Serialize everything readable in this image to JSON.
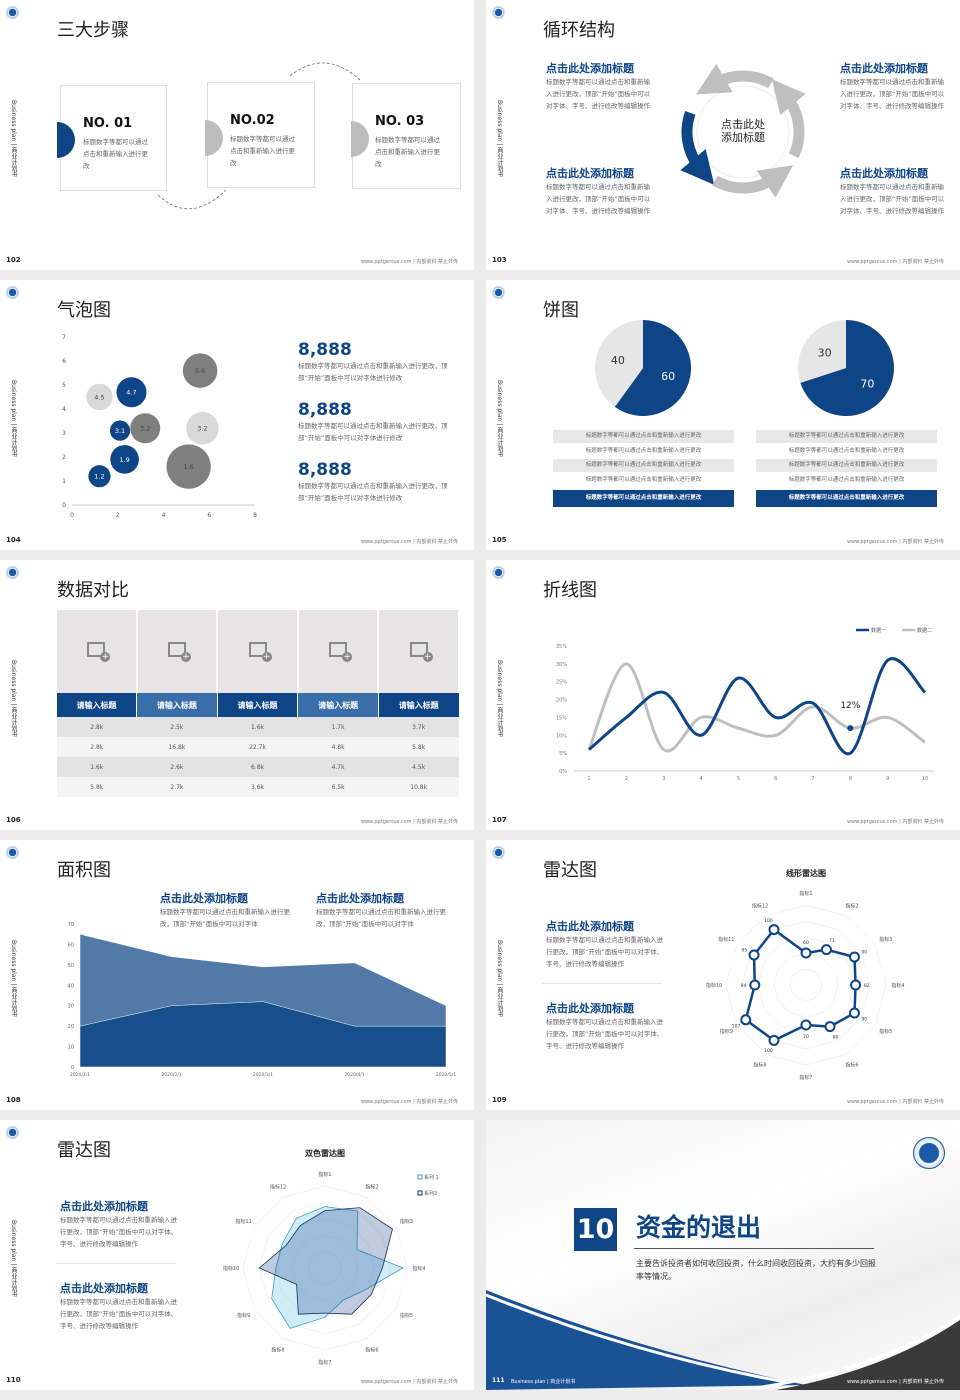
{
  "common": {
    "side_label": "Business plan | 商业计划书",
    "footer": "www.pptgenius.com | 内部资料 禁止外传"
  },
  "colors": {
    "navy": "#0e4587",
    "gray": "#bfbfbf",
    "dark_gray": "#7f7f7f",
    "light_gray": "#d9d9d9"
  },
  "s102": {
    "page": "102",
    "title": "三大步骤",
    "steps": [
      {
        "no": "NO. 01",
        "desc": "标题数字等都可以通过点击和重新输入进行更改"
      },
      {
        "no": "NO.02",
        "desc": "标题数字等都可以通过点击和重新输入进行更改"
      },
      {
        "no": "NO. 03",
        "desc": "标题数字等都可以通过点击和重新输入进行更改"
      }
    ]
  },
  "s103": {
    "page": "103",
    "title": "循环结构",
    "center": "点击此处\n添加标题",
    "blocks": [
      {
        "heading": "点击此处添加标题",
        "body": "标题数字等都可以通过点击和重新输入进行更改，顶部“开始”面板中可以对字体、字号、进行修改等编辑操作"
      },
      {
        "heading": "点击此处添加标题",
        "body": "标题数字等都可以通过点击和重新输入进行更改，顶部“开始”面板中可以对字体、字号、进行修改等编辑操作"
      },
      {
        "heading": "点击此处添加标题",
        "body": "标题数字等都可以通过点击和重新输入进行更改，顶部“开始”面板中可以对字体、字号、进行修改等编辑操作"
      },
      {
        "heading": "点击此处添加标题",
        "body": "标题数字等都可以通过点击和重新输入进行更改，顶部“开始”面板中可以对字体、字号、进行修改等编辑操作"
      }
    ]
  },
  "s104": {
    "page": "104",
    "title": "气泡图",
    "stats": [
      {
        "value": "8,888",
        "desc": "标题数字等都可以通过点击和重新输入进行更改，顶部“开始”面板中可以对字体进行修改"
      },
      {
        "value": "8,888",
        "desc": "标题数字等都可以通过点击和重新输入进行更改，顶部“开始”面板中可以对字体进行修改"
      },
      {
        "value": "8,888",
        "desc": "标题数字等都可以通过点击和重新输入进行更改，顶部“开始”面板中可以对字体进行修改"
      }
    ]
  },
  "s105": {
    "page": "105",
    "title": "饼图",
    "left_rows": [
      "标题数字等都可以通过点击和重新输入进行更改",
      "标题数字等都可以通过点击和重新输入进行更改",
      "标题数字等都可以通过点击和重新输入进行更改",
      "标题数字等都可以通过点击和重新输入进行更改",
      "标题数字等都可以通过点击和重新输入进行更改"
    ],
    "right_rows": [
      "标题数字等都可以通过点击和重新输入进行更改",
      "标题数字等都可以通过点击和重新输入进行更改",
      "标题数字等都可以通过点击和重新输入进行更改",
      "标题数字等都可以通过点击和重新输入进行更改",
      "标题数字等都可以通过点击和重新输入进行更改"
    ]
  },
  "s106": {
    "page": "106",
    "title": "数据对比",
    "headers": [
      "请输入标题",
      "请输入标题",
      "请输入标题",
      "请输入标题",
      "请输入标题"
    ],
    "rows": [
      [
        "2.8k",
        "2.5k",
        "1.6k",
        "1.7k",
        "3.7k"
      ],
      [
        "2.8k",
        "16.8k",
        "22.7k",
        "4.8k",
        "5.8k"
      ],
      [
        "1.6k",
        "2.6k",
        "6.8k",
        "4.7k",
        "4.5k"
      ],
      [
        "5.8k",
        "2.7k",
        "3.6k",
        "6.5k",
        "10.8k"
      ]
    ]
  },
  "s107": {
    "page": "107",
    "title": "折线图"
  },
  "s108": {
    "page": "108",
    "title": "面积图",
    "blocks": [
      {
        "heading": "点击此处添加标题",
        "body": "标题数字等都可以通过点击和重新输入进行更改，顶部“开始”面板中可以对字体"
      },
      {
        "heading": "点击此处添加标题",
        "body": "标题数字等都可以通过点击和重新输入进行更改，顶部“开始”面板中可以对字体"
      }
    ]
  },
  "s109": {
    "page": "109",
    "title": "雷达图",
    "blocks": [
      {
        "heading": "点击此处添加标题",
        "body": "标题数字等都可以通过点击和重新输入进行更改，顶部“开始”面板中可以对字体、字号、进行修改等编辑操作"
      },
      {
        "heading": "点击此处添加标题",
        "body": "标题数字等都可以通过点击和重新输入进行更改，顶部“开始”面板中可以对字体、字号、进行修改等编辑操作"
      }
    ]
  },
  "s110": {
    "page": "110",
    "title": "雷达图",
    "blocks": [
      {
        "heading": "点击此处添加标题",
        "body": "标题数字等都可以通过点击和重新输入进行更改，顶部“开始”面板中可以对字体、字号、进行修改等编辑操作"
      },
      {
        "heading": "点击此处添加标题",
        "body": "标题数字等都可以通过点击和重新输入进行更改，顶部“开始”面板中可以对字体、字号、进行修改等编辑操作"
      }
    ]
  },
  "s111": {
    "page": "111",
    "number": "10",
    "title": "资金的退出",
    "desc": "主要告诉投资者如何收回投资，什么时间收回投资，大约有多少回报率等情况。",
    "footer_left": "Business plan | 商业计划书"
  },
  "chart_data": [
    {
      "id": "bubble",
      "type": "scatter",
      "xlim": [
        0,
        8
      ],
      "ylim": [
        0,
        7
      ],
      "xticks": [
        0,
        2,
        4,
        6,
        8
      ],
      "yticks": [
        0,
        1,
        2,
        3,
        4,
        5,
        6,
        7
      ],
      "points": [
        {
          "x": 1.2,
          "y": 1.2,
          "size": 12,
          "label": "1.2",
          "color": "navy"
        },
        {
          "x": 2.3,
          "y": 1.9,
          "size": 20,
          "label": "1.9",
          "color": "navy"
        },
        {
          "x": 2.1,
          "y": 3.1,
          "size": 10,
          "label": "3.1",
          "color": "navy"
        },
        {
          "x": 2.6,
          "y": 4.7,
          "size": 22,
          "label": "4.7",
          "color": "navy"
        },
        {
          "x": 1.2,
          "y": 4.5,
          "size": 17,
          "label": "4.5",
          "color": "light_gray"
        },
        {
          "x": 3.2,
          "y": 3.2,
          "size": 22,
          "label": "3.2",
          "color": "dark_gray"
        },
        {
          "x": 5.7,
          "y": 3.2,
          "size": 26,
          "label": "3.2",
          "color": "light_gray"
        },
        {
          "x": 5.6,
          "y": 5.6,
          "size": 29,
          "label": "5.6",
          "color": "dark_gray"
        },
        {
          "x": 5.1,
          "y": 1.6,
          "size": 48,
          "label": "1.6",
          "color": "dark_gray"
        }
      ]
    },
    {
      "id": "pie1",
      "type": "pie",
      "values": [
        60,
        40
      ],
      "labels": [
        "60",
        "40"
      ]
    },
    {
      "id": "pie2",
      "type": "pie",
      "values": [
        70,
        30
      ],
      "labels": [
        "70",
        "30"
      ]
    },
    {
      "id": "line",
      "type": "line",
      "x": [
        1,
        2,
        3,
        4,
        5,
        6,
        7,
        8,
        9,
        10
      ],
      "ylim": [
        0,
        35
      ],
      "yticks": [
        "0%",
        "5%",
        "10%",
        "15%",
        "20%",
        "25%",
        "30%",
        "35%"
      ],
      "series": [
        {
          "name": "数据一",
          "values": [
            6,
            15,
            22,
            10,
            26,
            15,
            19,
            5,
            31,
            22
          ]
        },
        {
          "name": "数据二",
          "values": [
            6,
            30,
            6,
            15,
            12,
            10,
            18,
            12,
            15,
            8
          ]
        }
      ],
      "annotation": {
        "x": 8,
        "y": 12,
        "text": "12%"
      },
      "legend": "top-right"
    },
    {
      "id": "area",
      "type": "area",
      "categories": [
        "2020/1/1",
        "2020/2/1",
        "2020/3/1",
        "2020/4/1",
        "2020/5/1"
      ],
      "ylim": [
        0,
        70
      ],
      "yticks": [
        0,
        10,
        20,
        30,
        40,
        50,
        60,
        70
      ],
      "series": [
        {
          "values": [
            65,
            54,
            49,
            51,
            30
          ]
        },
        {
          "values": [
            20,
            30,
            32,
            20,
            20
          ]
        }
      ]
    },
    {
      "id": "radar1",
      "type": "radar",
      "title": "线形雷达图",
      "axes": [
        "指标1",
        "指标2",
        "指标3",
        "指标4",
        "指标5",
        "指标6",
        "指标7",
        "指标8",
        "指标9",
        "指标10",
        "指标11",
        "指标12"
      ],
      "values": [
        60,
        71,
        90,
        82,
        90,
        80,
        70,
        100,
        107,
        84,
        95,
        100
      ]
    },
    {
      "id": "radar2",
      "type": "radar",
      "title": "双色雷达图",
      "axes": [
        "指标1",
        "指标2",
        "指标3",
        "指标4",
        "指标5",
        "指标6",
        "指标7",
        "指标8",
        "指标9",
        "指标10",
        "指标11",
        "指标12"
      ],
      "series": [
        {
          "name": "系列 1",
          "values": [
            75,
            80,
            45,
            95,
            55,
            45,
            60,
            85,
            75,
            60,
            60,
            70
          ]
        },
        {
          "name": "系列2",
          "values": [
            70,
            85,
            95,
            70,
            65,
            65,
            55,
            65,
            40,
            80,
            55,
            60
          ]
        }
      ],
      "legend": "top-right"
    }
  ]
}
